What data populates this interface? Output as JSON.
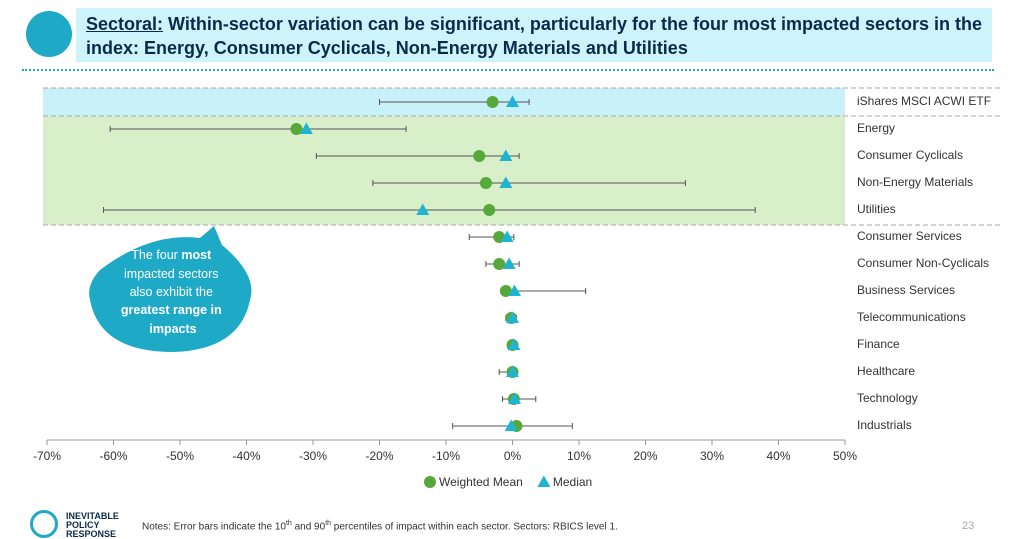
{
  "header": {
    "title_lead": "Sectoral:",
    "title_rest": " Within-sector variation can be significant, particularly for the four most impacted sectors in the index: Energy, Consumer Cyclicals, Non-Energy Materials and Utilities"
  },
  "callout": {
    "parts": [
      "The four ",
      "most",
      " impacted sectors",
      " also exhibit the ",
      "greatest range in",
      " impacts"
    ]
  },
  "chart_data": {
    "type": "dot-range",
    "categories": [
      "iShares MSCI ACWI ETF",
      "Energy",
      "Consumer Cyclicals",
      "Non-Energy Materials",
      "Utilities",
      "Consumer Services",
      "Consumer Non-Cyclicals",
      "Business Services",
      "Telecommunications",
      "Finance",
      "Healthcare",
      "Technology",
      "Industrials"
    ],
    "series": [
      {
        "name": "Weighted Mean",
        "color": "#56a83a",
        "marker": "circle",
        "values": [
          -3,
          -32.5,
          -5,
          -4,
          -3.5,
          -2,
          -2,
          -1,
          -0.2,
          0,
          0,
          0.2,
          0.6
        ]
      },
      {
        "name": "Median",
        "color": "#1fb4d2",
        "marker": "triangle",
        "values": [
          0,
          -31,
          -1,
          -1,
          -13.5,
          -0.8,
          -0.5,
          0.3,
          0,
          0.2,
          0,
          0.3,
          -0.2
        ]
      }
    ],
    "range_low": [
      -20,
      -60.5,
      -29.5,
      -21,
      -61.5,
      -6.5,
      -4,
      -1,
      -1,
      -0.5,
      -2,
      -1.5,
      -9
    ],
    "range_high": [
      2.5,
      -16,
      1,
      26,
      36.5,
      0.2,
      1,
      11,
      0.6,
      0.5,
      0.6,
      3.5,
      9
    ],
    "xlim": [
      -70,
      50
    ],
    "xticks": [
      {
        "value": -70,
        "label": "-70%"
      },
      {
        "value": -60,
        "label": "-60%"
      },
      {
        "value": -50,
        "label": "-50%"
      },
      {
        "value": -40,
        "label": "-40%"
      },
      {
        "value": -30,
        "label": "-30%"
      },
      {
        "value": -20,
        "label": "-20%"
      },
      {
        "value": -10,
        "label": "-10%"
      },
      {
        "value": 0,
        "label": "0%"
      },
      {
        "value": 10,
        "label": "10%"
      },
      {
        "value": 20,
        "label": "20%"
      },
      {
        "value": 30,
        "label": "30%"
      },
      {
        "value": 40,
        "label": "40%"
      },
      {
        "value": 50,
        "label": "50%"
      }
    ]
  },
  "footer": {
    "logo": "INEVITABLE POLICY RESPONSE",
    "notes": [
      "Notes: Error bars indicate the 10",
      "th",
      " and 90",
      "th",
      " percentiles of impact within each sector.  Sectors: RBICS level 1."
    ],
    "page": "23"
  }
}
